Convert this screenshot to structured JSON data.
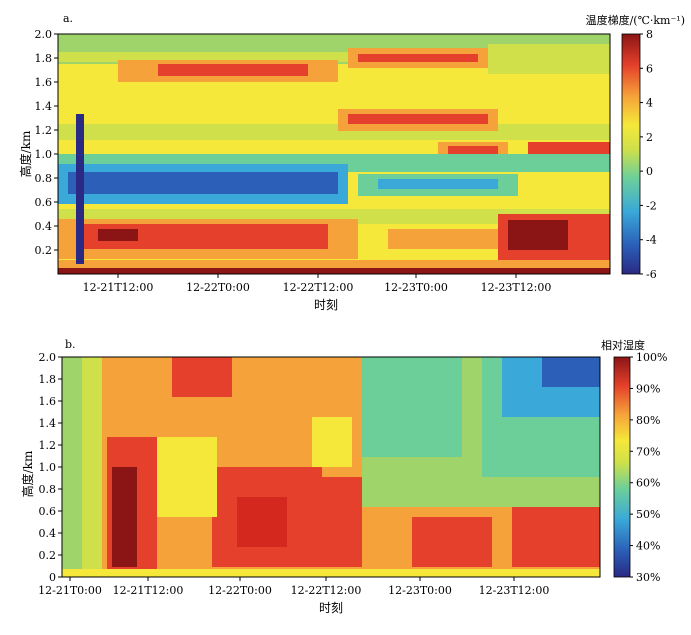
{
  "chart_data": [
    {
      "panel": "a.",
      "type": "heatmap",
      "xlabel": "时刻",
      "ylabel": "高度/km",
      "colorbar_title": "温度梯度/(℃·km⁻¹)",
      "ylim": [
        0,
        2.0
      ],
      "yticks": [
        "0.2",
        "0.4",
        "0.6",
        "0.8",
        "1.0",
        "1.2",
        "1.4",
        "1.6",
        "1.8",
        "2.0"
      ],
      "xticks": [
        "12-21T12:00",
        "12-22T0:00",
        "12-22T12:00",
        "12-23T0:00",
        "12-23T12:00"
      ],
      "colorbar_ticks": [
        "-6",
        "-4",
        "-2",
        "0",
        "2",
        "4",
        "6",
        "8"
      ],
      "colorbar_range": [
        -6,
        8
      ],
      "grid": false
    },
    {
      "panel": "b.",
      "type": "heatmap",
      "xlabel": "时刻",
      "ylabel": "高度/km",
      "colorbar_title": "相对湿度",
      "ylim": [
        0,
        2.0
      ],
      "yticks": [
        "0",
        "0.2",
        "0.4",
        "0.6",
        "0.8",
        "1.0",
        "1.2",
        "1.4",
        "1.6",
        "1.8",
        "2.0"
      ],
      "xticks": [
        "12-21T0:00",
        "12-21T12:00",
        "12-22T0:00",
        "12-22T12:00",
        "12-23T0:00",
        "12-23T12:00"
      ],
      "colorbar_ticks": [
        "30%",
        "40%",
        "50%",
        "60%",
        "70%",
        "80%",
        "90%",
        "100%"
      ],
      "colorbar_range": [
        30,
        100
      ],
      "grid": false
    }
  ]
}
